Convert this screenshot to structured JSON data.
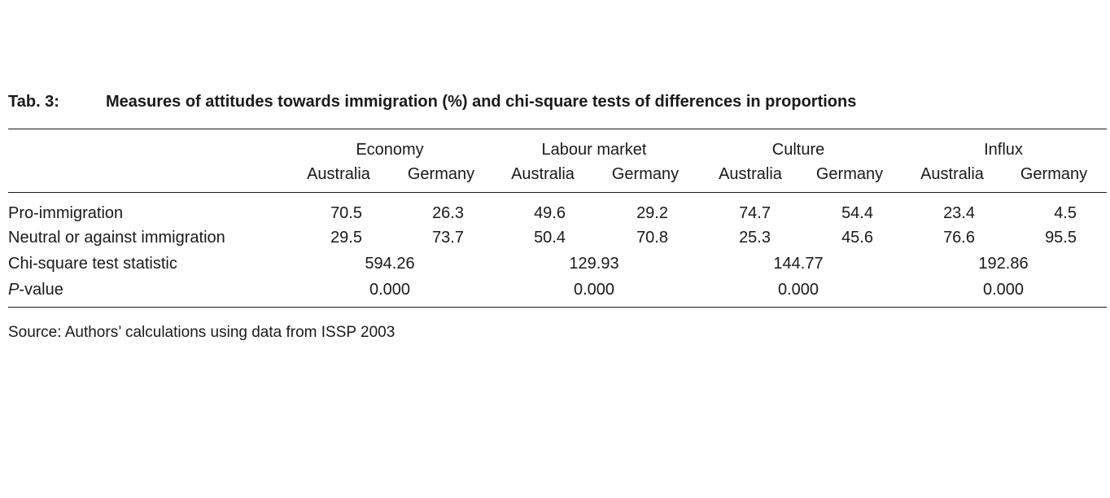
{
  "caption": {
    "number": "Tab. 3:",
    "title": "Measures of attitudes towards immigration (%) and chi-square tests of differences in proportions"
  },
  "header": {
    "groups": [
      "Economy",
      "Labour market",
      "Culture",
      "Influx"
    ],
    "countries": [
      "Australia",
      "Germany",
      "Australia",
      "Germany",
      "Australia",
      "Germany",
      "Australia",
      "Germany"
    ]
  },
  "rows": {
    "pro": {
      "label": "Pro-immigration",
      "values": [
        "70.5",
        "26.3",
        "49.6",
        "29.2",
        "74.7",
        "54.4",
        "23.4",
        "4.5"
      ]
    },
    "neutral": {
      "label": "Neutral or against immigration",
      "values": [
        "29.5",
        "73.7",
        "50.4",
        "70.8",
        "25.3",
        "45.6",
        "76.6",
        "95.5"
      ]
    },
    "chi": {
      "label": "Chi-square test statistic",
      "values": [
        "594.26",
        "129.93",
        "144.77",
        "192.86"
      ]
    },
    "pvalue": {
      "label_italic": "P",
      "label_rest": "-value",
      "values": [
        "0.000",
        "0.000",
        "0.000",
        "0.000"
      ]
    }
  },
  "source": "Source: Authors’ calculations using data from ISSP 2003"
}
